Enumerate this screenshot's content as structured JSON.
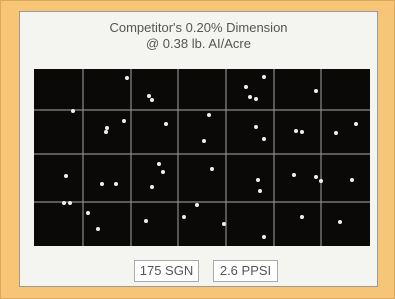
{
  "header": {
    "line1": "Competitor's 0.20% Dimension",
    "line2": "@ 0.38 lb. AI/Acre"
  },
  "labels": [
    "175 SGN",
    "2.6 PPSI"
  ]
}
